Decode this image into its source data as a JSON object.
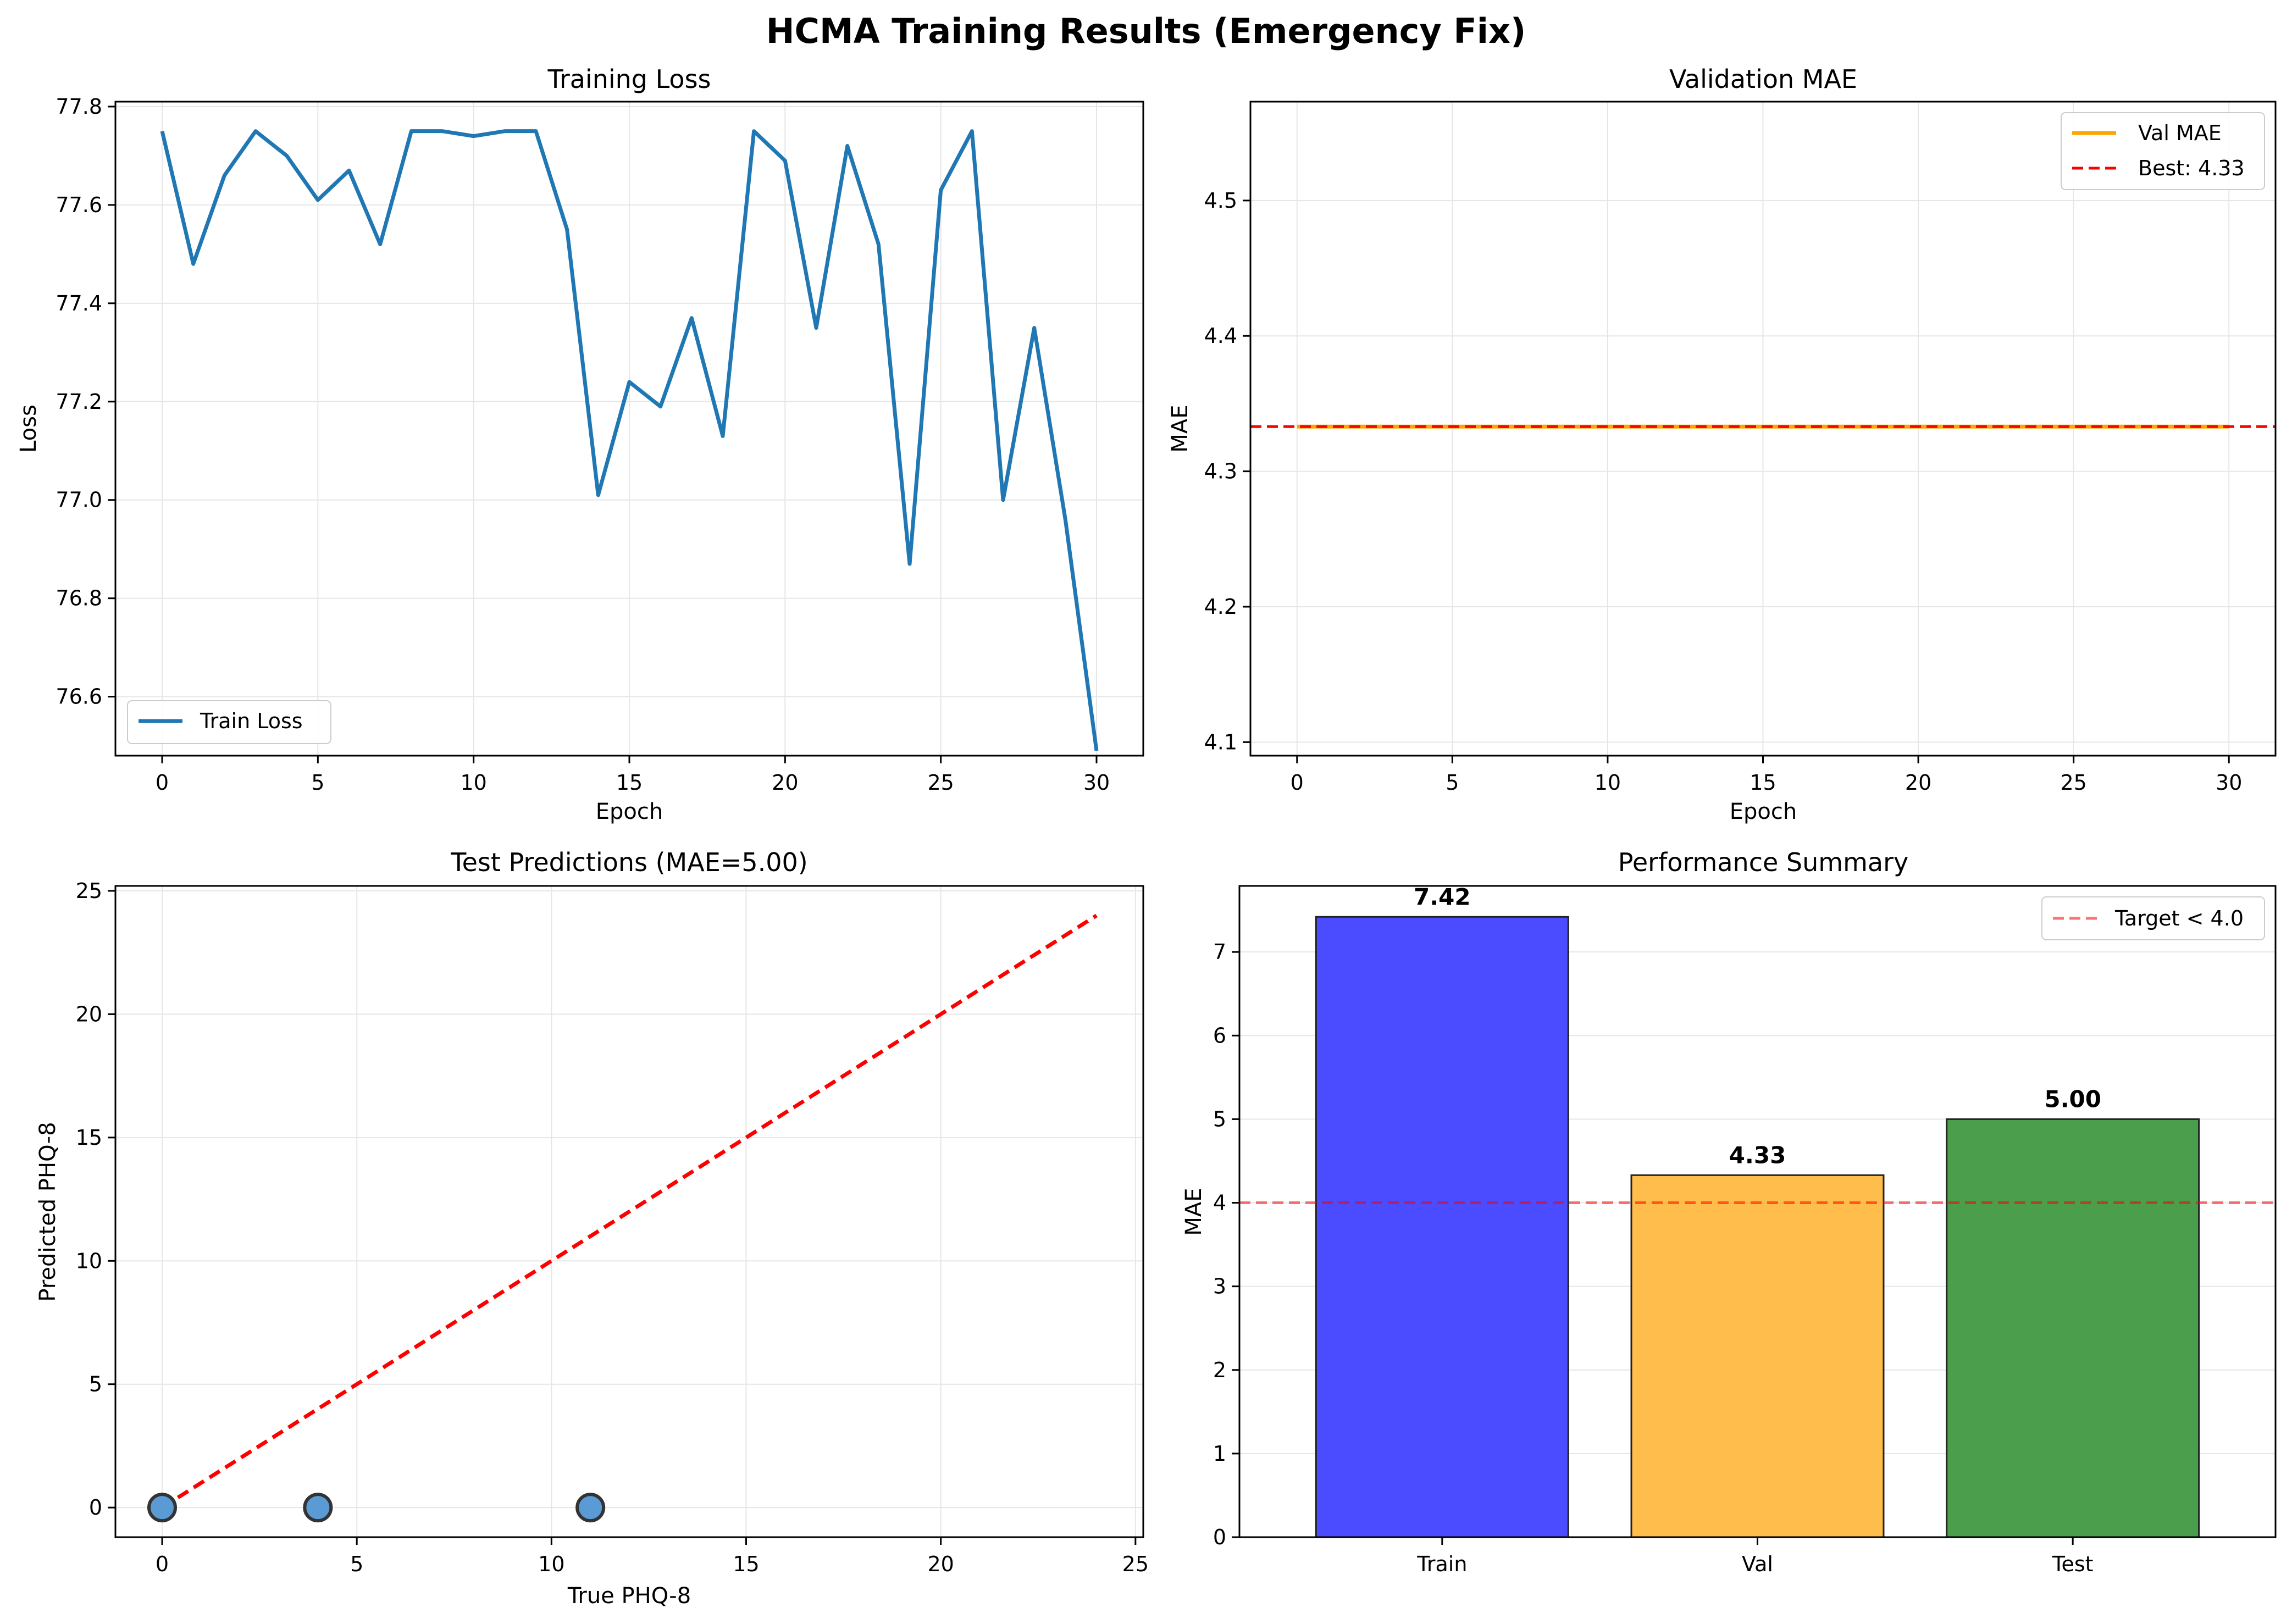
{
  "figure": {
    "suptitle": "HCMA Training Results (Emergency Fix)"
  },
  "colors": {
    "train_line": "#1f77b4",
    "val_line": "#ffa500",
    "best_line": "#ff0000",
    "scatter_fill": "#5b9bd5",
    "bar_train": "#4b4bff",
    "bar_val": "#ffbd4b",
    "bar_test": "#4b9e4b",
    "grid": "#e6e6e6"
  },
  "chart_data": [
    {
      "id": "training_loss",
      "type": "line",
      "title": "Training Loss",
      "xlabel": "Epoch",
      "ylabel": "Loss",
      "xlim": [
        -1.5,
        31.5
      ],
      "ylim": [
        76.48,
        77.81
      ],
      "xticks": [
        0,
        5,
        10,
        15,
        20,
        25,
        30
      ],
      "yticks": [
        76.6,
        76.8,
        77.0,
        77.2,
        77.4,
        77.6,
        77.8
      ],
      "grid": true,
      "legend": {
        "position": "lower-left",
        "entries": [
          "Train Loss"
        ]
      },
      "series": [
        {
          "name": "Train Loss",
          "x": [
            0,
            1,
            2,
            3,
            4,
            5,
            6,
            7,
            8,
            9,
            10,
            11,
            12,
            13,
            14,
            15,
            16,
            17,
            18,
            19,
            20,
            21,
            22,
            23,
            24,
            25,
            26,
            27,
            28,
            29,
            30
          ],
          "values": [
            77.75,
            77.48,
            77.66,
            77.75,
            77.7,
            77.61,
            77.67,
            77.52,
            77.75,
            77.75,
            77.74,
            77.75,
            77.75,
            77.55,
            77.01,
            77.24,
            77.19,
            77.37,
            77.13,
            77.75,
            77.69,
            77.35,
            77.72,
            77.52,
            76.87,
            77.63,
            77.75,
            77.0,
            77.35,
            76.96,
            76.49
          ]
        }
      ]
    },
    {
      "id": "validation_mae",
      "type": "line",
      "title": "Validation MAE",
      "xlabel": "Epoch",
      "ylabel": "MAE",
      "xlim": [
        -1.5,
        31.5
      ],
      "ylim": [
        4.09,
        4.573
      ],
      "xticks": [
        0,
        5,
        10,
        15,
        20,
        25,
        30
      ],
      "yticks": [
        4.1,
        4.2,
        4.3,
        4.4,
        4.5
      ],
      "grid": true,
      "legend": {
        "position": "upper-right",
        "entries": [
          "Val MAE",
          "Best: 4.33"
        ]
      },
      "series": [
        {
          "name": "Val MAE",
          "x": [
            0,
            30
          ],
          "values": [
            4.333,
            4.333
          ]
        }
      ],
      "hlines": [
        {
          "name": "Best: 4.33",
          "y": 4.333,
          "style": "dashed"
        }
      ]
    },
    {
      "id": "test_predictions",
      "type": "scatter",
      "title": "Test Predictions (MAE=5.00)",
      "xlabel": "True PHQ-8",
      "ylabel": "Predicted PHQ-8",
      "xlim": [
        -1.2,
        25.2
      ],
      "ylim": [
        -1.2,
        25.2
      ],
      "xticks": [
        0,
        5,
        10,
        15,
        20,
        25
      ],
      "yticks": [
        0,
        5,
        10,
        15,
        20,
        25
      ],
      "grid": true,
      "points": {
        "x": [
          0,
          4,
          11
        ],
        "y": [
          0,
          0,
          0
        ]
      },
      "reference_line": {
        "x": [
          0,
          24
        ],
        "y": [
          0,
          24
        ],
        "style": "dashed"
      }
    },
    {
      "id": "performance_summary",
      "type": "bar",
      "title": "Performance Summary",
      "xlabel": "",
      "ylabel": "MAE",
      "categories": [
        "Train",
        "Val",
        "Test"
      ],
      "values": [
        7.42,
        4.33,
        5.0
      ],
      "value_labels": [
        "7.42",
        "4.33",
        "5.00"
      ],
      "ylim": [
        0,
        7.79
      ],
      "yticks": [
        0,
        1,
        2,
        3,
        4,
        5,
        6,
        7
      ],
      "grid": true,
      "legend": {
        "position": "upper-right",
        "entries": [
          "Target < 4.0"
        ]
      },
      "hlines": [
        {
          "name": "Target < 4.0",
          "y": 4.0,
          "style": "dashed"
        }
      ]
    }
  ]
}
